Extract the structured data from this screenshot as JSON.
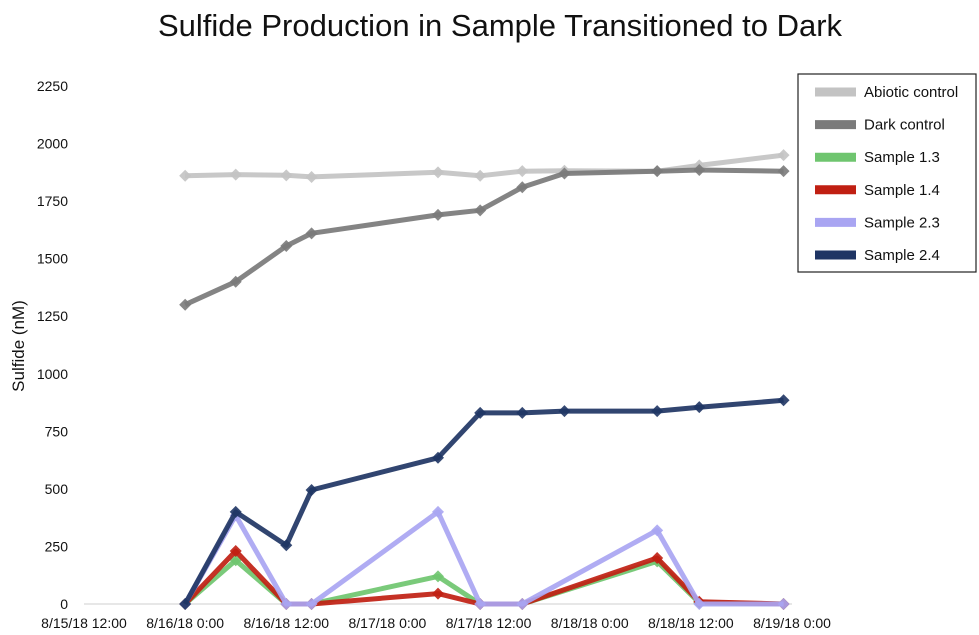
{
  "chart_data": {
    "type": "line",
    "title": "Sulfide Production in Sample Transitioned to Dark",
    "xlabel": "",
    "ylabel": "Sulfide (nM)",
    "ylim": [
      0,
      2250
    ],
    "yticks": [
      0,
      250,
      500,
      750,
      1000,
      1250,
      1500,
      1750,
      2000,
      2250
    ],
    "xlim": [
      "8/15/18 12:00",
      "8/19/18 0:00"
    ],
    "xticks": [
      "8/15/18 12:00",
      "8/16/18 0:00",
      "8/16/18 12:00",
      "8/17/18 0:00",
      "8/17/18 12:00",
      "8/18/18 0:00",
      "8/18/18 12:00",
      "8/19/18 0:00"
    ],
    "grid": false,
    "legend_position": "top-right",
    "series": [
      {
        "name": "Abiotic control",
        "color": "#c3c3c3",
        "x": [
          "8/16/18 0:00",
          "8/16/18 6:00",
          "8/16/18 12:00",
          "8/16/18 15:00",
          "8/17/18 6:00",
          "8/17/18 11:00",
          "8/17/18 16:00",
          "8/17/18 21:00",
          "8/18/18 8:00",
          "8/18/18 13:00",
          "8/18/18 23:00"
        ],
        "y": [
          1860,
          1865,
          1862,
          1855,
          1875,
          1860,
          1880,
          1882,
          1880,
          1905,
          1950
        ]
      },
      {
        "name": "Dark control",
        "color": "#7a7a7a",
        "x": [
          "8/16/18 0:00",
          "8/16/18 6:00",
          "8/16/18 12:00",
          "8/16/18 15:00",
          "8/17/18 6:00",
          "8/17/18 11:00",
          "8/17/18 16:00",
          "8/17/18 21:00",
          "8/18/18 8:00",
          "8/18/18 13:00",
          "8/18/18 23:00"
        ],
        "y": [
          1300,
          1400,
          1555,
          1610,
          1690,
          1710,
          1810,
          1870,
          1880,
          1885,
          1880
        ]
      },
      {
        "name": "Sample 1.3",
        "color": "#6fc56f",
        "x": [
          "8/16/18 0:00",
          "8/16/18 6:00",
          "8/16/18 12:00",
          "8/16/18 15:00",
          "8/17/18 6:00",
          "8/17/18 11:00",
          "8/17/18 16:00",
          "8/18/18 8:00",
          "8/18/18 13:00",
          "8/18/18 23:00"
        ],
        "y": [
          0,
          190,
          0,
          0,
          120,
          0,
          0,
          185,
          5,
          0
        ]
      },
      {
        "name": "Sample 1.4",
        "color": "#c01f12",
        "x": [
          "8/16/18 0:00",
          "8/16/18 6:00",
          "8/16/18 12:00",
          "8/16/18 15:00",
          "8/17/18 6:00",
          "8/17/18 11:00",
          "8/17/18 16:00",
          "8/18/18 8:00",
          "8/18/18 13:00",
          "8/18/18 23:00"
        ],
        "y": [
          0,
          230,
          0,
          0,
          45,
          0,
          0,
          200,
          10,
          0
        ]
      },
      {
        "name": "Sample 2.3",
        "color": "#a9a5f2",
        "x": [
          "8/16/18 0:00",
          "8/16/18 6:00",
          "8/16/18 12:00",
          "8/16/18 15:00",
          "8/17/18 6:00",
          "8/17/18 11:00",
          "8/17/18 16:00",
          "8/18/18 8:00",
          "8/18/18 13:00",
          "8/18/18 23:00"
        ],
        "y": [
          0,
          385,
          0,
          0,
          400,
          0,
          0,
          320,
          0,
          0
        ]
      },
      {
        "name": "Sample 2.4",
        "color": "#1f3564",
        "x": [
          "8/16/18 0:00",
          "8/16/18 6:00",
          "8/16/18 12:00",
          "8/16/18 15:00",
          "8/17/18 6:00",
          "8/17/18 11:00",
          "8/17/18 16:00",
          "8/17/18 21:00",
          "8/18/18 8:00",
          "8/18/18 13:00",
          "8/18/18 23:00"
        ],
        "y": [
          0,
          400,
          255,
          495,
          635,
          830,
          830,
          838,
          838,
          855,
          885
        ]
      }
    ]
  }
}
